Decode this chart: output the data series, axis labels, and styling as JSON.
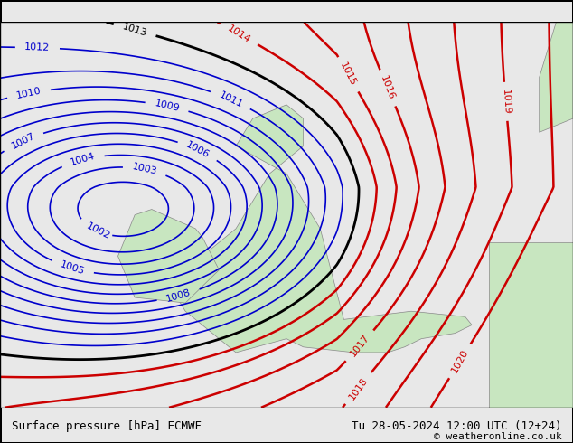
{
  "title_left": "Surface pressure [hPa] ECMWF",
  "title_right": "Tu 28-05-2024 12:00 UTC (12+24)",
  "copyright": "© weatheronline.co.uk",
  "bg_color": "#e8e8e8",
  "land_color": "#c8e6c0",
  "sea_color": "#dcdcdc",
  "blue_contour_color": "#0000cc",
  "black_contour_color": "#000000",
  "red_contour_color": "#cc0000",
  "contour_linewidth_blue": 1.2,
  "contour_linewidth_black": 2.0,
  "contour_linewidth_red": 1.8,
  "label_fontsize": 8,
  "footer_fontsize": 9,
  "figsize": [
    6.34,
    4.9
  ],
  "dpi": 100
}
